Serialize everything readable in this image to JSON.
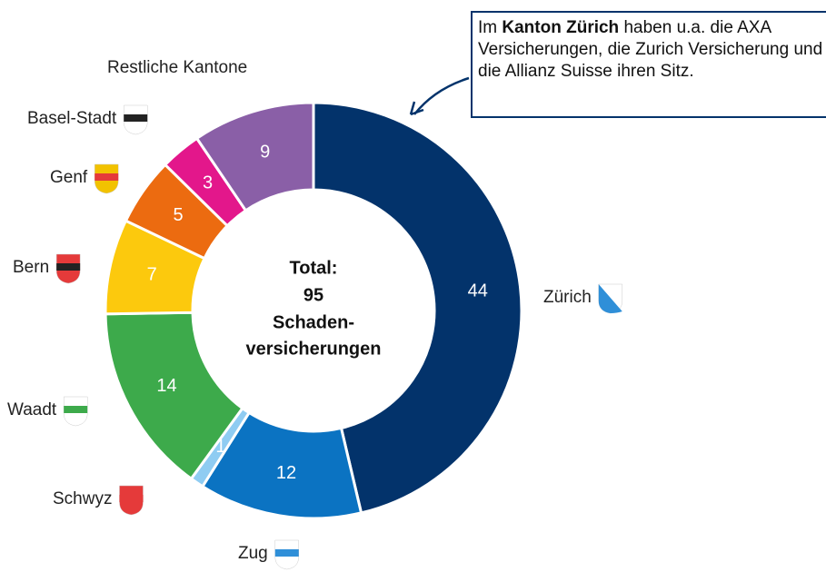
{
  "chart_data": {
    "type": "donut",
    "categories": [
      "Zürich",
      "Zug",
      "Schwyz",
      "Waadt",
      "Bern",
      "Genf",
      "Basel-Stadt",
      "Restliche Kantone"
    ],
    "values": [
      44,
      12,
      1,
      14,
      7,
      5,
      3,
      9
    ],
    "colors": [
      "#03336b",
      "#0b73c2",
      "#8fccf2",
      "#3daa4b",
      "#fcc90d",
      "#ec6b10",
      "#e3178b",
      "#8a5fa7"
    ],
    "center_label": "Total:",
    "total": 95,
    "center_sublabel": [
      "Schaden-",
      "versicherungen"
    ],
    "annotation": {
      "before": "Im ",
      "bold": "Kanton Zürich",
      "after": " haben u.a. die AXA Versicherungen, die Zurich Versicherung und die Allianz Suisse ihren Sitz."
    }
  }
}
